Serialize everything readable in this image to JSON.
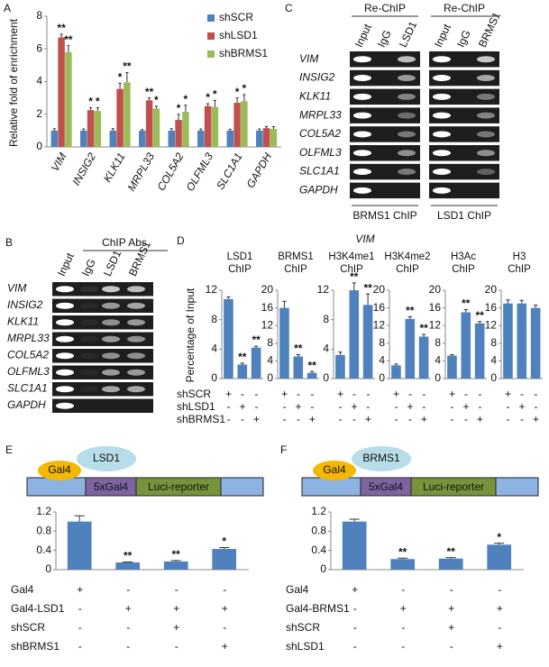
{
  "chart_data": [
    {
      "type": "bar",
      "panel_label": "A",
      "y_label": "Relative fold of enrichment",
      "categories": [
        "VIM",
        "INSIG2",
        "KLK11",
        "MRPL33",
        "COL5A2",
        "OLFML3",
        "SLC1A1",
        "GAPDH"
      ],
      "series": [
        {
          "name": "shSCR",
          "color": "#4f81bd",
          "values": [
            1,
            1,
            1,
            1,
            1,
            1,
            1,
            1
          ],
          "errors": [
            0.12,
            0.1,
            0.12,
            0.06,
            0.12,
            0.1,
            0.08,
            0.1
          ]
        },
        {
          "name": "shLSD1",
          "color": "#c0504d",
          "values": [
            6.7,
            2.25,
            3.55,
            2.85,
            1.65,
            2.5,
            2.7,
            1.15
          ],
          "errors": [
            0.2,
            0.15,
            0.35,
            0.15,
            0.35,
            0.15,
            0.3,
            0.1
          ],
          "annotations": [
            "**",
            "*",
            "*",
            "**",
            "*",
            "*",
            "*",
            null
          ]
        },
        {
          "name": "shBRMS1",
          "color": "#9bbb59",
          "values": [
            5.8,
            2.2,
            3.95,
            2.35,
            2.15,
            2.45,
            2.8,
            1.1
          ],
          "errors": [
            0.4,
            0.2,
            0.6,
            0.15,
            0.4,
            0.4,
            0.4,
            0.15
          ],
          "annotations": [
            "**",
            "*",
            "**",
            "*",
            "*",
            "*",
            "*",
            null
          ]
        }
      ],
      "ylim": [
        0,
        8
      ],
      "yticks": [
        0,
        2,
        4,
        6,
        8
      ],
      "legend": "upper right"
    },
    {
      "type": "bar",
      "title": "LSD1 ChIP",
      "color": "#4f81bd",
      "values": [
        10.8,
        1.9,
        4.2
      ],
      "errors": [
        0.3,
        0.2,
        0.2
      ],
      "annotations": [
        null,
        "**",
        "**"
      ],
      "ylim": [
        0,
        12
      ],
      "yticks": [
        0,
        4,
        8,
        12
      ]
    },
    {
      "type": "bar",
      "title": "BRMS1 ChIP",
      "color": "#4f81bd",
      "values": [
        16,
        5,
        1.3
      ],
      "errors": [
        1.5,
        0.4,
        0.3
      ],
      "annotations": [
        null,
        "**",
        "**"
      ],
      "ylim": [
        0,
        20
      ],
      "yticks": [
        0,
        4,
        8,
        12,
        16,
        20
      ]
    },
    {
      "type": "bar",
      "title": "H3K4me1 ChIP",
      "color": "#4f81bd",
      "values": [
        3.2,
        12,
        10
      ],
      "errors": [
        0.4,
        1.0,
        1.5
      ],
      "annotations": [
        null,
        "**",
        "**"
      ],
      "ylim": [
        0,
        12
      ],
      "yticks": [
        0,
        4,
        8,
        12
      ]
    },
    {
      "type": "bar",
      "title": "H3K4me2 ChIP",
      "color": "#4f81bd",
      "values": [
        3,
        13.5,
        9.5
      ],
      "errors": [
        0.3,
        0.5,
        0.5
      ],
      "annotations": [
        null,
        "**",
        "**"
      ],
      "ylim": [
        0,
        20
      ],
      "yticks": [
        0,
        4,
        8,
        12,
        16,
        20
      ]
    },
    {
      "type": "bar",
      "title": "H3Ac ChIP",
      "color": "#4f81bd",
      "values": [
        5.2,
        15,
        12.5
      ],
      "errors": [
        0.2,
        0.6,
        0.4
      ],
      "annotations": [
        null,
        "**",
        "**"
      ],
      "ylim": [
        0,
        20
      ],
      "yticks": [
        0,
        4,
        8,
        12,
        16,
        20
      ]
    },
    {
      "type": "bar",
      "title": "H3 ChIP",
      "color": "#4f81bd",
      "values": [
        17,
        17,
        16
      ],
      "errors": [
        0.8,
        0.7,
        0.6
      ],
      "ylim": [
        0,
        20
      ],
      "yticks": [
        0,
        4,
        8,
        12,
        16,
        20
      ]
    },
    {
      "type": "bar",
      "panel_label": "E",
      "color": "#4f81bd",
      "values": [
        1.0,
        0.15,
        0.17,
        0.43
      ],
      "errors": [
        0.12,
        0.01,
        0.02,
        0.03
      ],
      "annotations": [
        null,
        "**",
        "**",
        "*"
      ],
      "ylim": [
        0,
        1.2
      ],
      "yticks": [
        0,
        0.4,
        0.8,
        1.2
      ],
      "diagram": {
        "factor": "Gal4",
        "partner": "LSD1",
        "element": "5xGal4",
        "reporter": "Luci-reporter"
      },
      "conditions": [
        {
          "name": "Gal4",
          "signs": [
            "+",
            "-",
            "-",
            "-"
          ]
        },
        {
          "name": "Gal4-LSD1",
          "signs": [
            "-",
            "+",
            "+",
            "+"
          ]
        },
        {
          "name": "shSCR",
          "signs": [
            "-",
            "-",
            "+",
            "-"
          ]
        },
        {
          "name": "shBRMS1",
          "signs": [
            "-",
            "-",
            "-",
            "+"
          ]
        }
      ]
    },
    {
      "type": "bar",
      "panel_label": "F",
      "color": "#4f81bd",
      "values": [
        1.0,
        0.22,
        0.23,
        0.52
      ],
      "errors": [
        0.05,
        0.02,
        0.02,
        0.03
      ],
      "annotations": [
        null,
        "**",
        "**",
        "*"
      ],
      "ylim": [
        0,
        1.2
      ],
      "yticks": [
        0,
        0.4,
        0.8,
        1.2
      ],
      "diagram": {
        "factor": "Gal4",
        "partner": "BRMS1",
        "element": "5xGal4",
        "reporter": "Luci-reporter"
      },
      "conditions": [
        {
          "name": "Gal4",
          "signs": [
            "+",
            "-",
            "-",
            "-"
          ]
        },
        {
          "name": "Gal4-BRMS1",
          "signs": [
            "-",
            "+",
            "+",
            "+"
          ]
        },
        {
          "name": "shSCR",
          "signs": [
            "-",
            "-",
            "+",
            "-"
          ]
        },
        {
          "name": "shLSD1",
          "signs": [
            "-",
            "-",
            "-",
            "+"
          ]
        }
      ]
    }
  ],
  "gel_b": {
    "label": "B",
    "header": "ChIP Abs",
    "lanes": [
      "Input",
      "IgG",
      "LSD1",
      "BRMS1"
    ],
    "rows": [
      "VIM",
      "INSIG2",
      "KLK11",
      "MRPL33",
      "COL5A2",
      "OLFML3",
      "SLC1A1",
      "GAPDH"
    ]
  },
  "gel_c": {
    "label": "C",
    "groups": [
      {
        "header": "Re-ChIP",
        "lanes": [
          "Input",
          "IgG",
          "LSD1"
        ],
        "footer": "BRMS1 ChIP"
      },
      {
        "header": "Re-ChIP",
        "lanes": [
          "Input",
          "IgG",
          "BRMS1"
        ],
        "footer": "LSD1 ChIP"
      }
    ],
    "rows": [
      "VIM",
      "INSIG2",
      "KLK11",
      "MRPL33",
      "COL5A2",
      "OLFML3",
      "SLC1A1",
      "GAPDH"
    ]
  },
  "panel_d": {
    "label": "D",
    "title": "VIM",
    "y_label": "Percentage of Input",
    "conditions": [
      {
        "name": "shSCR",
        "signs": [
          "+",
          "-",
          "-"
        ]
      },
      {
        "name": "shLSD1",
        "signs": [
          "-",
          "+",
          "-"
        ]
      },
      {
        "name": "shBRMS1",
        "signs": [
          "-",
          "-",
          "+"
        ]
      }
    ]
  }
}
